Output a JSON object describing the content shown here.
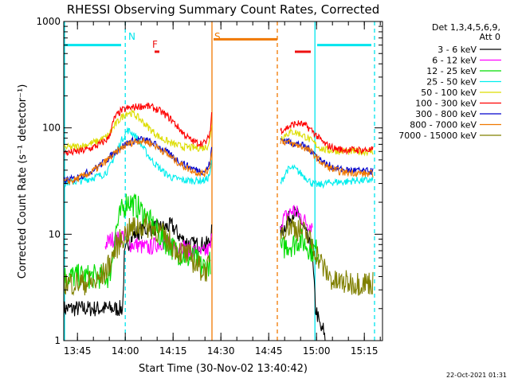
{
  "chart_data": {
    "type": "line",
    "title": "RHESSI Observing Summary Count Rates, Corrected",
    "xlabel": "Start Time (30-Nov-02 13:40:42)",
    "ylabel": "Corrected Count Rate (s⁻¹ detector⁻¹)",
    "y_scale": "log",
    "ylim": [
      1,
      1000
    ],
    "y_ticks": [
      1,
      10,
      100,
      1000
    ],
    "y_tick_labels": [
      "1",
      "10",
      "100",
      "1000"
    ],
    "xlim_minutes": [
      0,
      100
    ],
    "x_tick_labels": [
      "13:45",
      "14:00",
      "14:15",
      "14:30",
      "14:45",
      "15:00",
      "15:15"
    ],
    "x_ticks_minutes": [
      4.3,
      19.3,
      34.3,
      49.3,
      64.3,
      79.3,
      94.3
    ],
    "legend_header": [
      "Det 1,3,4,5,6,9,",
      "Att 0"
    ],
    "legend_position": "right",
    "date_stamp": "22-Oct-2021 01:31",
    "annotations": [
      {
        "text": "N",
        "x_minutes": 19.5,
        "color": "#00e5ee"
      },
      {
        "text": "F",
        "x_minutes": 27,
        "color": "#ee1111"
      },
      {
        "text": "S",
        "x_minutes": 46.5,
        "color": "#f07800"
      }
    ],
    "vertical_markers": [
      {
        "x_minutes": 19.3,
        "style": "dashed",
        "color": "#00e5ee"
      },
      {
        "x_minutes": 46.5,
        "style": "solid",
        "color": "#f07800"
      },
      {
        "x_minutes": 67,
        "style": "dashed",
        "color": "#f07800"
      },
      {
        "x_minutes": 78.8,
        "style": "solid",
        "color": "#00e5ee"
      },
      {
        "x_minutes": 97.5,
        "style": "dashed",
        "color": "#00e5ee"
      }
    ],
    "flag_bars": [
      {
        "name": "night",
        "color": "#00e5ee",
        "y": 600,
        "ranges_minutes": [
          [
            0,
            18
          ],
          [
            79.5,
            96.5
          ]
        ]
      },
      {
        "name": "flare",
        "color": "#ee1111",
        "y": 520,
        "ranges_minutes": [
          [
            28.5,
            30
          ],
          [
            72.5,
            77.5
          ]
        ]
      },
      {
        "name": "saa",
        "color": "#f07800",
        "y": 680,
        "ranges_minutes": [
          [
            47,
            67
          ]
        ]
      }
    ],
    "gap_minutes": [
      46.5,
      67
    ],
    "series": [
      {
        "name": "3 - 6 keV",
        "color": "#000000",
        "x": [
          0,
          4,
          8,
          13,
          16,
          18.5,
          19,
          20,
          22,
          25,
          28,
          31,
          34,
          37,
          40,
          43,
          45,
          46,
          46.4
        ],
        "y": [
          2,
          2,
          2,
          2,
          2,
          2,
          6,
          8,
          10,
          11,
          11.5,
          11.5,
          12,
          9,
          8,
          8,
          8,
          9,
          11
        ]
      },
      {
        "name": "3 - 6 keV",
        "color": "#000000",
        "x": [
          68,
          70,
          72,
          74,
          76,
          77,
          78,
          79,
          79.5,
          80,
          81,
          81.5,
          82
        ],
        "y": [
          10,
          13,
          16,
          14,
          10,
          8,
          6,
          2,
          1.8,
          1.5,
          1.2,
          1.3,
          1
        ]
      },
      {
        "name": "6 - 12 keV",
        "color": "#ff00ff",
        "x": [
          13,
          15,
          17,
          19,
          21,
          23,
          25,
          27,
          29,
          31,
          33,
          35,
          37,
          39,
          41,
          43,
          45,
          46,
          46.4
        ],
        "y": [
          8,
          9,
          9,
          10,
          8,
          8,
          7.5,
          7.5,
          8,
          8.5,
          8,
          7.5,
          8,
          7,
          7,
          6.5,
          7,
          7.5,
          9
        ]
      },
      {
        "name": "6 - 12 keV",
        "color": "#ff00ff",
        "x": [
          68,
          70,
          72,
          74,
          76,
          78
        ],
        "y": [
          13,
          15,
          17,
          15,
          13,
          12
        ]
      },
      {
        "name": "12 - 25 keV",
        "color": "#00dd00",
        "x": [
          0,
          4,
          8,
          12,
          14,
          15,
          16,
          18,
          20,
          21,
          23,
          25,
          27,
          29,
          31,
          33,
          35,
          37,
          39,
          41,
          43,
          45,
          46
        ],
        "y": [
          4,
          4,
          4,
          4,
          4,
          5,
          10,
          16,
          21,
          20,
          18,
          16,
          13,
          11,
          9,
          8,
          7,
          6.5,
          6,
          6,
          5,
          5,
          5.5
        ]
      },
      {
        "name": "12 - 25 keV",
        "color": "#00dd00",
        "x": [
          68,
          70,
          72,
          74,
          76,
          78,
          80
        ],
        "y": [
          7,
          8,
          8,
          9,
          8,
          7,
          7
        ]
      },
      {
        "name": "25 - 50 keV",
        "color": "#00eeee",
        "x": [
          0,
          3,
          6,
          9,
          12,
          14,
          16,
          18,
          20,
          22,
          24,
          26,
          28,
          30,
          32,
          34,
          36,
          38,
          40,
          42,
          44,
          45,
          46,
          46.4
        ],
        "y": [
          30,
          31,
          32,
          34,
          36,
          40,
          55,
          75,
          95,
          88,
          72,
          58,
          48,
          42,
          37,
          34,
          33,
          32,
          32,
          32,
          32,
          33,
          38,
          48
        ]
      },
      {
        "name": "25 - 50 keV",
        "color": "#00eeee",
        "x": [
          68,
          70,
          72,
          74,
          76,
          78,
          80,
          82,
          85,
          88,
          91,
          94,
          97
        ],
        "y": [
          30,
          40,
          42,
          38,
          34,
          30,
          29,
          30,
          31,
          31,
          32,
          32,
          32
        ]
      },
      {
        "name": "50 - 100 keV",
        "color": "#dddd00",
        "x": [
          0,
          3,
          6,
          9,
          12,
          14,
          16,
          18,
          20,
          22,
          24,
          26,
          28,
          30,
          32,
          34,
          36,
          38,
          40,
          42,
          44,
          45,
          46,
          46.4
        ],
        "y": [
          65,
          66,
          68,
          72,
          78,
          85,
          105,
          125,
          140,
          135,
          120,
          105,
          92,
          82,
          76,
          71,
          68,
          66,
          65,
          65,
          65,
          67,
          80,
          110
        ]
      },
      {
        "name": "50 - 100 keV",
        "color": "#dddd00",
        "x": [
          68,
          70,
          72,
          74,
          76,
          78,
          80,
          82,
          85,
          88,
          91,
          94,
          97
        ],
        "y": [
          80,
          88,
          92,
          88,
          82,
          74,
          66,
          62,
          61,
          60,
          60,
          60,
          60
        ]
      },
      {
        "name": "100 - 300 keV",
        "color": "#ff0000",
        "x": [
          0,
          3,
          6,
          9,
          12,
          14,
          16,
          18,
          20,
          22,
          24,
          26,
          28,
          30,
          32,
          34,
          36,
          38,
          40,
          42,
          44,
          45,
          46,
          46.4
        ],
        "y": [
          58,
          59,
          61,
          65,
          72,
          80,
          125,
          145,
          152,
          156,
          160,
          160,
          155,
          145,
          132,
          118,
          100,
          86,
          76,
          72,
          72,
          75,
          95,
          140
        ]
      },
      {
        "name": "100 - 300 keV",
        "color": "#ff0000",
        "x": [
          68,
          70,
          72,
          74,
          76,
          78,
          80,
          82,
          85,
          88,
          91,
          94,
          97
        ],
        "y": [
          95,
          100,
          108,
          110,
          104,
          94,
          80,
          70,
          64,
          62,
          62,
          62,
          62
        ]
      },
      {
        "name": "300 - 800 keV",
        "color": "#0000cc",
        "x": [
          0,
          3,
          6,
          9,
          12,
          15,
          18,
          20,
          22,
          24,
          26,
          28,
          30,
          32,
          34,
          36,
          38,
          40,
          42,
          44,
          45,
          46,
          46.4
        ],
        "y": [
          32,
          33,
          36,
          40,
          46,
          55,
          66,
          72,
          76,
          78,
          76,
          72,
          66,
          60,
          54,
          49,
          45,
          42,
          40,
          39,
          41,
          48,
          65
        ]
      },
      {
        "name": "300 - 800 keV",
        "color": "#0000cc",
        "x": [
          68,
          70,
          72,
          74,
          76,
          78,
          80,
          82,
          85,
          88,
          91,
          94,
          97
        ],
        "y": [
          78,
          75,
          72,
          70,
          66,
          60,
          52,
          46,
          42,
          40,
          40,
          39,
          39
        ]
      },
      {
        "name": "800 - 7000 keV",
        "color": "#f07800",
        "x": [
          0,
          3,
          6,
          9,
          12,
          15,
          18,
          20,
          22,
          24,
          26,
          28,
          30,
          32,
          34,
          36,
          38,
          40,
          42,
          44,
          45,
          46,
          46.4
        ],
        "y": [
          31,
          32,
          35,
          39,
          45,
          54,
          64,
          70,
          74,
          76,
          74,
          70,
          64,
          58,
          52,
          47,
          43,
          40,
          38,
          37,
          39,
          46,
          62
        ]
      },
      {
        "name": "800 - 7000 keV",
        "color": "#f07800",
        "x": [
          68,
          70,
          72,
          74,
          76,
          78,
          80,
          82,
          85,
          88,
          91,
          94,
          97
        ],
        "y": [
          76,
          73,
          70,
          68,
          64,
          58,
          50,
          44,
          40,
          38,
          38,
          37,
          37
        ]
      },
      {
        "name": "7000 - 15000 keV",
        "color": "#808000",
        "x": [
          0,
          4,
          8,
          10,
          12,
          14,
          16,
          18,
          20,
          22,
          24,
          26,
          28,
          30,
          32,
          34,
          36,
          38,
          40,
          42,
          44,
          46
        ],
        "y": [
          3.5,
          3.5,
          3.5,
          3.5,
          4,
          5,
          7,
          9,
          10.5,
          11.5,
          12,
          12,
          11.5,
          10.5,
          9,
          8,
          7,
          6.5,
          6,
          5,
          4.5,
          5
        ]
      },
      {
        "name": "7000 - 15000 keV",
        "color": "#808000",
        "x": [
          68,
          70,
          72,
          74,
          76,
          78,
          80,
          82,
          85,
          88,
          91,
          94,
          97
        ],
        "y": [
          11,
          12,
          12,
          11,
          10,
          8,
          6,
          4.5,
          3.5,
          3.5,
          3.5,
          3.5,
          3.5
        ]
      }
    ]
  }
}
